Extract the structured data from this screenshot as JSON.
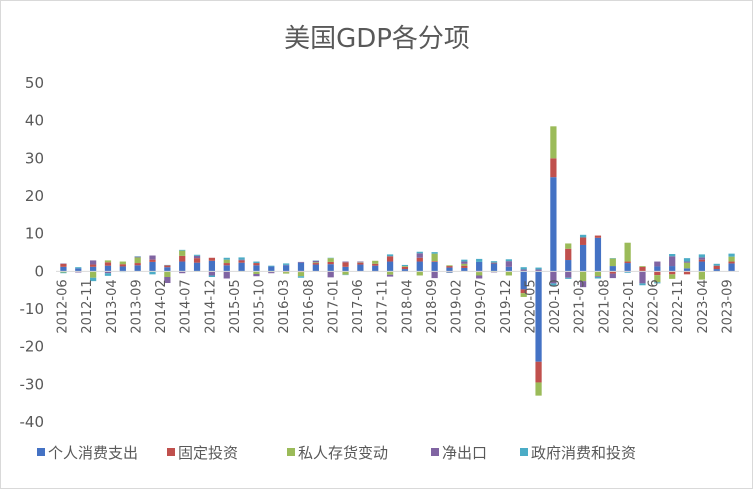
{
  "chart_data": {
    "type": "bar",
    "stacked": true,
    "title": "美国GDP各分项",
    "xlabel": "",
    "ylabel": "",
    "ylim": [
      -40,
      50
    ],
    "yticks": [
      50,
      40,
      30,
      20,
      10,
      0,
      -10,
      -20,
      -30,
      -40
    ],
    "legend_position": "bottom",
    "grid": false,
    "x_tick_labels": [
      "2012-06",
      "2012-11",
      "2013-04",
      "2013-09",
      "2014-02",
      "2014-07",
      "2014-12",
      "2015-05",
      "2015-10",
      "2016-03",
      "2016-08",
      "2017-01",
      "2017-06",
      "2017-11",
      "2018-04",
      "2018-09",
      "2019-02",
      "2019-07",
      "2019-12",
      "2020-05",
      "2020-10",
      "2021-03",
      "2021-08",
      "2022-01",
      "2022-06",
      "2022-11",
      "2023-04",
      "2023-09"
    ],
    "categories": [
      "2012-06",
      "2012-09",
      "2012-12",
      "2013-03",
      "2013-06",
      "2013-09",
      "2013-12",
      "2014-03",
      "2014-06",
      "2014-09",
      "2014-12",
      "2015-03",
      "2015-06",
      "2015-09",
      "2015-12",
      "2016-03",
      "2016-06",
      "2016-09",
      "2016-12",
      "2017-03",
      "2017-06",
      "2017-09",
      "2017-12",
      "2018-03",
      "2018-06",
      "2018-09",
      "2018-12",
      "2019-03",
      "2019-06",
      "2019-09",
      "2019-12",
      "2020-03",
      "2020-06",
      "2020-09",
      "2020-12",
      "2021-03",
      "2021-06",
      "2021-09",
      "2021-12",
      "2022-03",
      "2022-06",
      "2022-09",
      "2022-12",
      "2023-03",
      "2023-06",
      "2023-09"
    ],
    "series": [
      {
        "name": "个人消费支出",
        "color": "#4472c4",
        "values": [
          1.2,
          0.8,
          1.2,
          1.5,
          1.3,
          1.6,
          2.5,
          1.1,
          2.6,
          2.3,
          2.8,
          1.6,
          2.3,
          1.6,
          1.3,
          1.6,
          2.3,
          1.8,
          1.9,
          1.2,
          1.8,
          1.5,
          2.6,
          0.6,
          2.6,
          2.5,
          1.0,
          0.9,
          2.5,
          2.1,
          1.2,
          -4.8,
          -24.0,
          25.0,
          3.0,
          7.0,
          8.9,
          1.4,
          2.2,
          0.0,
          1.3,
          1.4,
          0.8,
          2.6,
          0.6,
          2.1
        ]
      },
      {
        "name": "固定投资",
        "color": "#c0504d",
        "values": [
          0.8,
          0.0,
          0.6,
          0.9,
          0.6,
          0.6,
          0.6,
          0.5,
          1.5,
          1.2,
          0.8,
          0.6,
          0.6,
          0.6,
          0.0,
          -0.2,
          -0.2,
          0.4,
          0.6,
          1.2,
          0.5,
          0.5,
          1.4,
          0.6,
          1.0,
          0.2,
          0.4,
          0.6,
          -0.2,
          0.2,
          -0.1,
          -1.0,
          -5.5,
          5.0,
          3.0,
          2.0,
          0.6,
          -0.6,
          0.4,
          1.2,
          -1.0,
          -0.8,
          -0.8,
          0.5,
          0.9,
          0.5
        ]
      },
      {
        "name": "私人存货变动",
        "color": "#9bbb59",
        "values": [
          -0.3,
          0.0,
          -1.7,
          0.5,
          0.7,
          1.5,
          -0.1,
          -1.5,
          1.4,
          -0.1,
          -0.1,
          0.9,
          -0.1,
          -0.7,
          -0.2,
          -0.4,
          -1.1,
          0.2,
          1.0,
          -0.9,
          0.1,
          0.8,
          -0.9,
          0.2,
          -1.1,
          2.0,
          0.2,
          0.5,
          -0.9,
          -0.2,
          -1.0,
          -1.0,
          -3.5,
          8.5,
          1.4,
          -2.6,
          -1.3,
          2.0,
          5.0,
          0.2,
          -1.9,
          -1.2,
          1.5,
          -2.2,
          0.0,
          1.3
        ]
      },
      {
        "name": "净出口",
        "color": "#8064a2",
        "values": [
          0.1,
          -0.3,
          1.1,
          -0.5,
          -0.1,
          0.2,
          1.1,
          -1.6,
          -0.5,
          0.6,
          -1.0,
          -1.9,
          0.2,
          -0.6,
          -0.3,
          0.1,
          0.2,
          0.4,
          -1.6,
          0.2,
          0.2,
          -0.1,
          -0.5,
          -0.1,
          1.2,
          -1.8,
          -0.3,
          0.6,
          -0.8,
          -0.1,
          1.5,
          0.5,
          0.5,
          -3.2,
          -1.7,
          -1.6,
          -0.2,
          -1.2,
          -0.2,
          -3.2,
          1.3,
          2.6,
          0.3,
          0.6,
          0.0,
          0.0
        ]
      },
      {
        "name": "政府消费和投资",
        "color": "#4bacc6",
        "values": [
          -0.2,
          0.3,
          -0.9,
          -0.7,
          -0.1,
          0.1,
          -0.7,
          0.1,
          0.2,
          0.3,
          -0.4,
          0.5,
          0.6,
          0.4,
          0.2,
          0.4,
          -0.4,
          0.1,
          0.1,
          -0.1,
          0.0,
          0.0,
          0.5,
          0.3,
          0.4,
          0.4,
          -0.1,
          0.5,
          0.8,
          0.4,
          0.5,
          0.6,
          0.5,
          -0.8,
          -0.3,
          0.7,
          -0.4,
          0.1,
          -0.2,
          -0.5,
          -0.3,
          0.6,
          0.9,
          0.8,
          0.5,
          0.8
        ]
      }
    ]
  }
}
